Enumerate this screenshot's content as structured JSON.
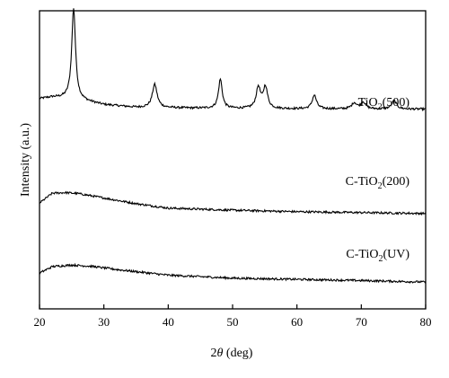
{
  "chart_data": {
    "type": "line",
    "title": "",
    "xlabel_prefix": "2",
    "xlabel_theta": "θ",
    "xlabel_suffix": " (deg)",
    "ylabel": "Intensity (a.u.)",
    "xlim": [
      20,
      80
    ],
    "ylim": [
      0,
      100
    ],
    "y_ticks_labeled": false,
    "xticks": [
      20,
      30,
      40,
      50,
      60,
      70,
      80
    ],
    "xtick_labels": [
      "20",
      "30",
      "40",
      "50",
      "60",
      "70",
      "80"
    ],
    "grid": false,
    "line_color": "#000000",
    "series": [
      {
        "label_main": "TiO",
        "label_sub": "2",
        "label_tail": "(500)",
        "baseline": 67,
        "noise": 0.35,
        "background": [
          [
            20,
            70.5
          ],
          [
            22,
            71
          ],
          [
            25,
            70.6
          ],
          [
            30,
            68.5
          ],
          [
            35,
            67.6
          ],
          [
            45,
            67.3
          ],
          [
            60,
            67.1
          ],
          [
            80,
            67
          ]
        ],
        "peaks": [
          {
            "x": 25.3,
            "height": 30.5,
            "width": 0.35
          },
          {
            "x": 37.9,
            "height": 7.8,
            "width": 0.45
          },
          {
            "x": 48.1,
            "height": 9.8,
            "width": 0.35
          },
          {
            "x": 54.0,
            "height": 7,
            "width": 0.4
          },
          {
            "x": 55.1,
            "height": 7.2,
            "width": 0.4
          },
          {
            "x": 62.7,
            "height": 4.6,
            "width": 0.4
          },
          {
            "x": 68.9,
            "height": 2,
            "width": 0.45
          },
          {
            "x": 70.3,
            "height": 2.3,
            "width": 0.45
          },
          {
            "x": 75.1,
            "height": 2.8,
            "width": 0.45
          }
        ]
      },
      {
        "label_main": "C-TiO",
        "label_sub": "2",
        "label_tail": "(200)",
        "baseline": 32,
        "noise": 0.35,
        "background": [
          [
            20,
            35.5
          ],
          [
            22,
            38.8
          ],
          [
            24,
            39
          ],
          [
            26,
            38.7
          ],
          [
            30,
            37.2
          ],
          [
            35,
            35.3
          ],
          [
            40,
            33.8
          ],
          [
            50,
            33.1
          ],
          [
            60,
            32.6
          ],
          [
            70,
            32.3
          ],
          [
            80,
            32
          ]
        ],
        "peaks": []
      },
      {
        "label_main": "C-TiO",
        "label_sub": "2",
        "label_tail": "(UV)",
        "baseline": 9,
        "noise": 0.35,
        "background": [
          [
            20,
            12
          ],
          [
            22,
            14.2
          ],
          [
            25,
            14.7
          ],
          [
            28,
            14.3
          ],
          [
            32,
            13.2
          ],
          [
            40,
            11.3
          ],
          [
            50,
            10.3
          ],
          [
            60,
            9.9
          ],
          [
            70,
            9.5
          ],
          [
            80,
            9
          ]
        ],
        "peaks": []
      }
    ]
  }
}
